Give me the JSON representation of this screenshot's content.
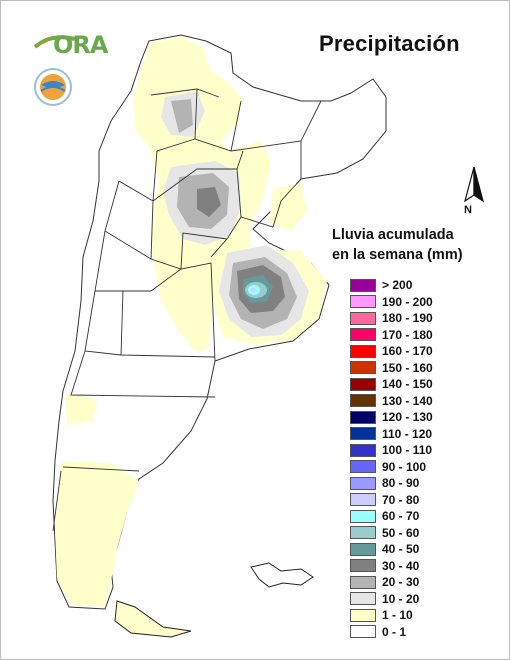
{
  "title": "Precipitación",
  "logo": {
    "text": "ORA",
    "seal_text": "INSTITUTO NACIONAL DE TECNOLOGÍA AGROPECUARIA · ARGENTINA"
  },
  "north_letter": "N",
  "legend": {
    "title_line1": "Lluvia acumulada",
    "title_line2": "en la semana (mm)",
    "items": [
      {
        "label": "> 200",
        "color": "#990099"
      },
      {
        "label": "190 - 200",
        "color": "#ff99ff"
      },
      {
        "label": "180 - 190",
        "color": "#ff6699"
      },
      {
        "label": "170 - 180",
        "color": "#ff0066"
      },
      {
        "label": "160 - 170",
        "color": "#ff0000"
      },
      {
        "label": "150 - 160",
        "color": "#cc3300"
      },
      {
        "label": "140 - 150",
        "color": "#990000"
      },
      {
        "label": "130 - 140",
        "color": "#663300"
      },
      {
        "label": "120 - 130",
        "color": "#000066"
      },
      {
        "label": "110 - 120",
        "color": "#003399"
      },
      {
        "label": "100 - 110",
        "color": "#3333cc"
      },
      {
        "label": "90 - 100",
        "color": "#6666ff"
      },
      {
        "label": "80 - 90",
        "color": "#9999ff"
      },
      {
        "label": "70 - 80",
        "color": "#ccccff"
      },
      {
        "label": "60 - 70",
        "color": "#99ffff"
      },
      {
        "label": "50 - 60",
        "color": "#99cccc"
      },
      {
        "label": "40 - 50",
        "color": "#669999"
      },
      {
        "label": "30 - 40",
        "color": "#808080"
      },
      {
        "label": "20 - 30",
        "color": "#b3b3b3"
      },
      {
        "label": "10 - 20",
        "color": "#e6e6e6"
      },
      {
        "label": "1 - 10",
        "color": "#ffffcc"
      },
      {
        "label": "0 - 1",
        "color": "#ffffff"
      }
    ]
  }
}
